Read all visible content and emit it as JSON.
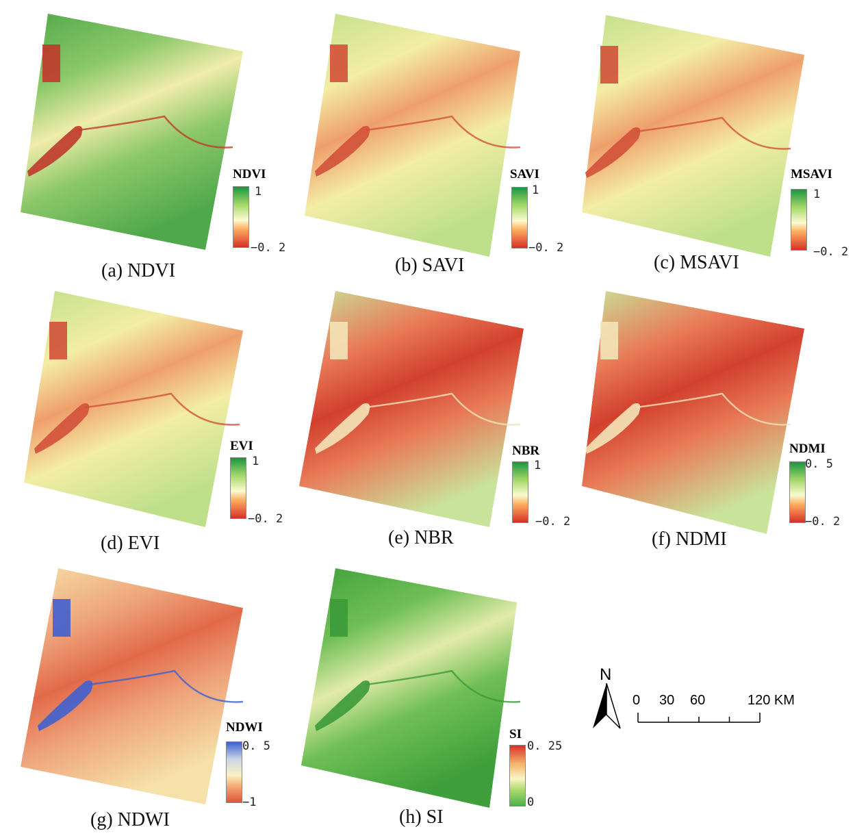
{
  "figure": {
    "panels": [
      {
        "id": "ndvi",
        "caption": "(a) NDVI",
        "legend_title": "NDVI",
        "max_label": "1",
        "min_label": "−0. 2",
        "palette": "rdylgn",
        "theme": "green"
      },
      {
        "id": "savi",
        "caption": "(b) SAVI",
        "legend_title": "SAVI",
        "max_label": "1",
        "min_label": "−0. 2",
        "palette": "rdylgn",
        "theme": "yellow"
      },
      {
        "id": "msavi",
        "caption": "(c) MSAVI",
        "legend_title": "MSAVI",
        "max_label": "1",
        "min_label": "−0. 2",
        "palette": "rdylgn",
        "theme": "yellow"
      },
      {
        "id": "evi",
        "caption": "(d) EVI",
        "legend_title": "EVI",
        "max_label": "1",
        "min_label": "−0. 2",
        "palette": "rdylgn",
        "theme": "yellow"
      },
      {
        "id": "nbr",
        "caption": "(e) NBR",
        "legend_title": "NBR",
        "max_label": "1",
        "min_label": "−0. 2",
        "palette": "rdylgn",
        "theme": "red"
      },
      {
        "id": "ndmi",
        "caption": "(f) NDMI",
        "legend_title": "NDMI",
        "max_label": "0. 5",
        "min_label": "−0. 2",
        "palette": "rdylgn",
        "theme": "red"
      },
      {
        "id": "ndwi",
        "caption": "(g) NDWI",
        "legend_title": "NDWI",
        "max_label": "0. 5",
        "min_label": "−1",
        "palette": "rdylbu",
        "theme": "orange"
      },
      {
        "id": "si",
        "caption": "(h) SI",
        "legend_title": "SI",
        "max_label": "0. 25",
        "min_label": "0",
        "palette": "grylrd",
        "theme": "siGreen"
      }
    ],
    "north_arrow": {
      "label": "N"
    },
    "scale_bar": {
      "ticks": [
        "0",
        "30",
        "60",
        "120 KM"
      ],
      "values": [
        0,
        30,
        60,
        90,
        120
      ],
      "unit": "KM"
    },
    "colors": {
      "red": "#d73027",
      "orange": "#ee8a5a",
      "yellow": "#f4f1b0",
      "lightgreen": "#a6d96a",
      "green": "#1a9641",
      "blue": "#3a5fd0"
    }
  }
}
